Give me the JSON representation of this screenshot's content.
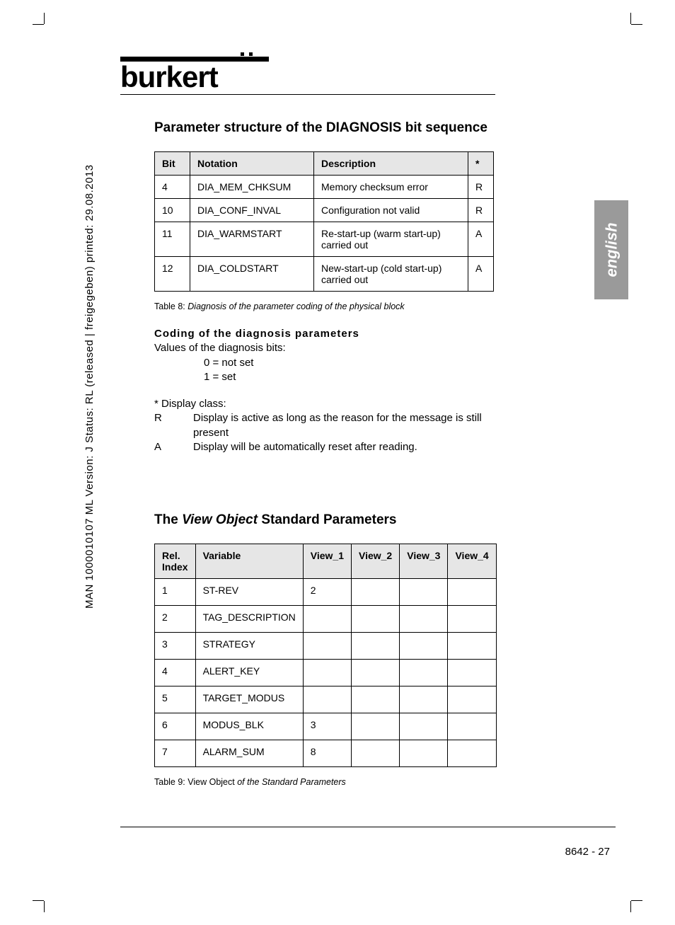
{
  "sidetext": "MAN  1000010107  ML   Version: J   Status: RL (released | freigegeben)   printed: 29.08.2013",
  "logo_text": "burkert",
  "lang_tab": "english",
  "section1_title": "Parameter structure of the DIAGNOSIS bit sequence",
  "table1": {
    "headers": [
      "Bit",
      "Notation",
      "Description",
      "*"
    ],
    "rows": [
      [
        "4",
        "DIA_MEM_CHKSUM",
        "Memory checksum error",
        "R"
      ],
      [
        "10",
        "DIA_CONF_INVAL",
        "Configuration not valid",
        "R"
      ],
      [
        "11",
        "DIA_WARMSTART",
        "Re-start-up (warm start-up) carried out",
        "A"
      ],
      [
        "12",
        "DIA_COLDSTART",
        "New-start-up (cold start-up) carried out",
        "A"
      ]
    ],
    "caption_prefix": "Table 8: ",
    "caption": "Diagnosis of the parameter coding of the physical block"
  },
  "coding": {
    "heading": "Coding  of  the  diagnosis  parameters",
    "line1": "Values of the diagnosis bits:",
    "bit0": "0 = not set",
    "bit1": "1 = set",
    "disp_head": "*  Display  class:",
    "r_label": "R",
    "r_text": "Display is active as long as the reason for the message is still present",
    "a_label": "A",
    "a_text": "Display will be automatically reset after reading."
  },
  "section2_pre": "The ",
  "section2_ital": "View Object",
  "section2_post": " Standard Parameters",
  "table2": {
    "headers": [
      "Rel. Index",
      "Variable",
      "View_1",
      "View_2",
      "View_3",
      "View_4"
    ],
    "rows": [
      [
        "1",
        "ST-REV",
        "2",
        "",
        "",
        ""
      ],
      [
        "2",
        "TAG_DESCRIPTION",
        "",
        "",
        "",
        ""
      ],
      [
        "3",
        "STRATEGY",
        "",
        "",
        "",
        ""
      ],
      [
        "4",
        "ALERT_KEY",
        "",
        "",
        "",
        ""
      ],
      [
        "5",
        "TARGET_MODUS",
        "",
        "",
        "",
        ""
      ],
      [
        "6",
        "MODUS_BLK",
        "3",
        "",
        "",
        ""
      ],
      [
        "7",
        "ALARM_SUM",
        "8",
        "",
        "",
        ""
      ]
    ],
    "caption_prefix": "Table 9: ",
    "caption_norm": "View Object ",
    "caption_ital": "of the Standard Parameters"
  },
  "footer": "8642  -  27"
}
